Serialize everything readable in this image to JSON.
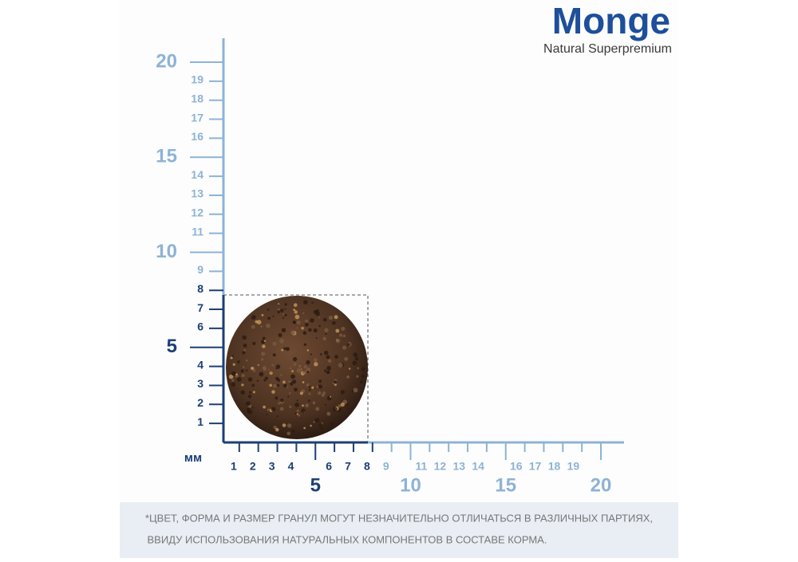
{
  "logo": {
    "brand": "Monge",
    "tagline": "Natural Superpremium"
  },
  "ruler": {
    "unit": "мм",
    "y_marked": [
      1,
      2,
      3,
      4,
      6,
      7,
      8
    ],
    "y_plain": [
      9,
      11,
      12,
      13,
      14,
      16,
      17,
      18,
      19
    ],
    "y_major_marked": [
      5
    ],
    "y_major_plain": [
      10,
      15,
      20
    ],
    "x_marked": [
      1,
      2,
      3,
      4,
      6,
      7,
      8
    ],
    "x_plain": [
      9,
      11,
      12,
      13,
      14,
      16,
      17,
      18,
      19
    ],
    "x_major_marked": [
      5
    ],
    "x_major_plain": [
      10,
      15,
      20
    ]
  },
  "footnote": [
    "*ЦВЕТ, ФОРМА И РАЗМЕР ГРАНУЛ МОГУТ НЕЗНАЧИТЕЛЬНО ОТЛИЧАТЬСЯ В РАЗЛИЧНЫХ ПАРТИЯХ,",
    "ВВИДУ ИСПОЛЬЗОВАНИЯ НАТУРАЛЬНЫХ КОМПОНЕНТОВ В СОСТАВЕ КОРМА."
  ]
}
